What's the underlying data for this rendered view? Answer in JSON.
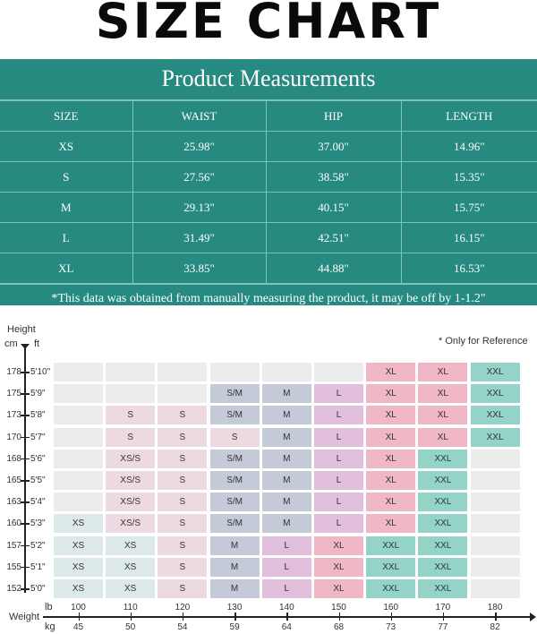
{
  "title": "SIZE CHART",
  "measurements": {
    "heading": "Product Measurements",
    "columns": [
      "SIZE",
      "WAIST",
      "HIP",
      "LENGTH"
    ],
    "rows": [
      [
        "XS",
        "25.98\"",
        "37.00\"",
        "14.96\""
      ],
      [
        "S",
        "27.56\"",
        "38.58\"",
        "15.35\""
      ],
      [
        "M",
        "29.13\"",
        "40.15\"",
        "15.75\""
      ],
      [
        "L",
        "31.49\"",
        "42.51\"",
        "16.15\""
      ],
      [
        "XL",
        "33.85\"",
        "44.88\"",
        "16.53\""
      ]
    ],
    "note": "*This data was obtained from manually measuring the product, it may be off by 1-1.2\""
  },
  "chart": {
    "height_label": "Height",
    "cm_label": "cm",
    "ft_label": "ft",
    "reference_note": "* Only for Reference",
    "weight_label": "Weight",
    "lb_label": "lb",
    "kg_label": "kg"
  },
  "colors": {
    "teal": "#268a80",
    "empty": "#ececec",
    "XS": "#dde8ea",
    "XS/S": "#ecd9e1",
    "S": "#ecd9e1",
    "S/M": "#c5cad9",
    "M": "#c5cad9",
    "L": "#e0bedc",
    "XL": "#f0b8c6",
    "XXL": "#93d3c8"
  },
  "chart_data": {
    "type": "heatmap",
    "title": "SIZE CHART",
    "xlabel": "Weight (lb / kg)",
    "ylabel": "Height (cm / ft)",
    "x_lb": [
      100,
      110,
      120,
      130,
      140,
      150,
      160,
      170,
      180
    ],
    "x_kg": [
      45,
      50,
      54,
      59,
      64,
      68,
      73,
      77,
      82
    ],
    "y_cm": [
      178,
      175,
      173,
      170,
      168,
      165,
      163,
      160,
      157,
      155,
      152
    ],
    "y_ft": [
      "5'10\"",
      "5'9\"",
      "5'8\"",
      "5'7\"",
      "5'6\"",
      "5'5\"",
      "5'4\"",
      "5'3\"",
      "5'2\"",
      "5'1\"",
      "5'0\""
    ],
    "grid": [
      [
        "",
        "",
        "",
        "",
        "",
        "",
        "XL",
        "XL",
        "XXL"
      ],
      [
        "",
        "",
        "",
        "S/M",
        "M",
        "L",
        "XL",
        "XL",
        "XXL"
      ],
      [
        "",
        "S",
        "S",
        "S/M",
        "M",
        "L",
        "XL",
        "XL",
        "XXL"
      ],
      [
        "",
        "S",
        "S",
        "S",
        "M",
        "L",
        "XL",
        "XL",
        "XXL"
      ],
      [
        "",
        "XS/S",
        "S",
        "S/M",
        "M",
        "L",
        "XL",
        "XXL",
        ""
      ],
      [
        "",
        "XS/S",
        "S",
        "S/M",
        "M",
        "L",
        "XL",
        "XXL",
        ""
      ],
      [
        "",
        "XS/S",
        "S",
        "S/M",
        "M",
        "L",
        "XL",
        "XXL",
        ""
      ],
      [
        "XS",
        "XS/S",
        "S",
        "S/M",
        "M",
        "L",
        "XL",
        "XXL",
        ""
      ],
      [
        "XS",
        "XS",
        "S",
        "M",
        "L",
        "XL",
        "XXL",
        "XXL",
        ""
      ],
      [
        "XS",
        "XS",
        "S",
        "M",
        "L",
        "XL",
        "XXL",
        "XXL",
        ""
      ],
      [
        "XS",
        "XS",
        "S",
        "M",
        "L",
        "XL",
        "XXL",
        "XXL",
        ""
      ]
    ],
    "annotations": [
      "* Only for Reference"
    ]
  }
}
